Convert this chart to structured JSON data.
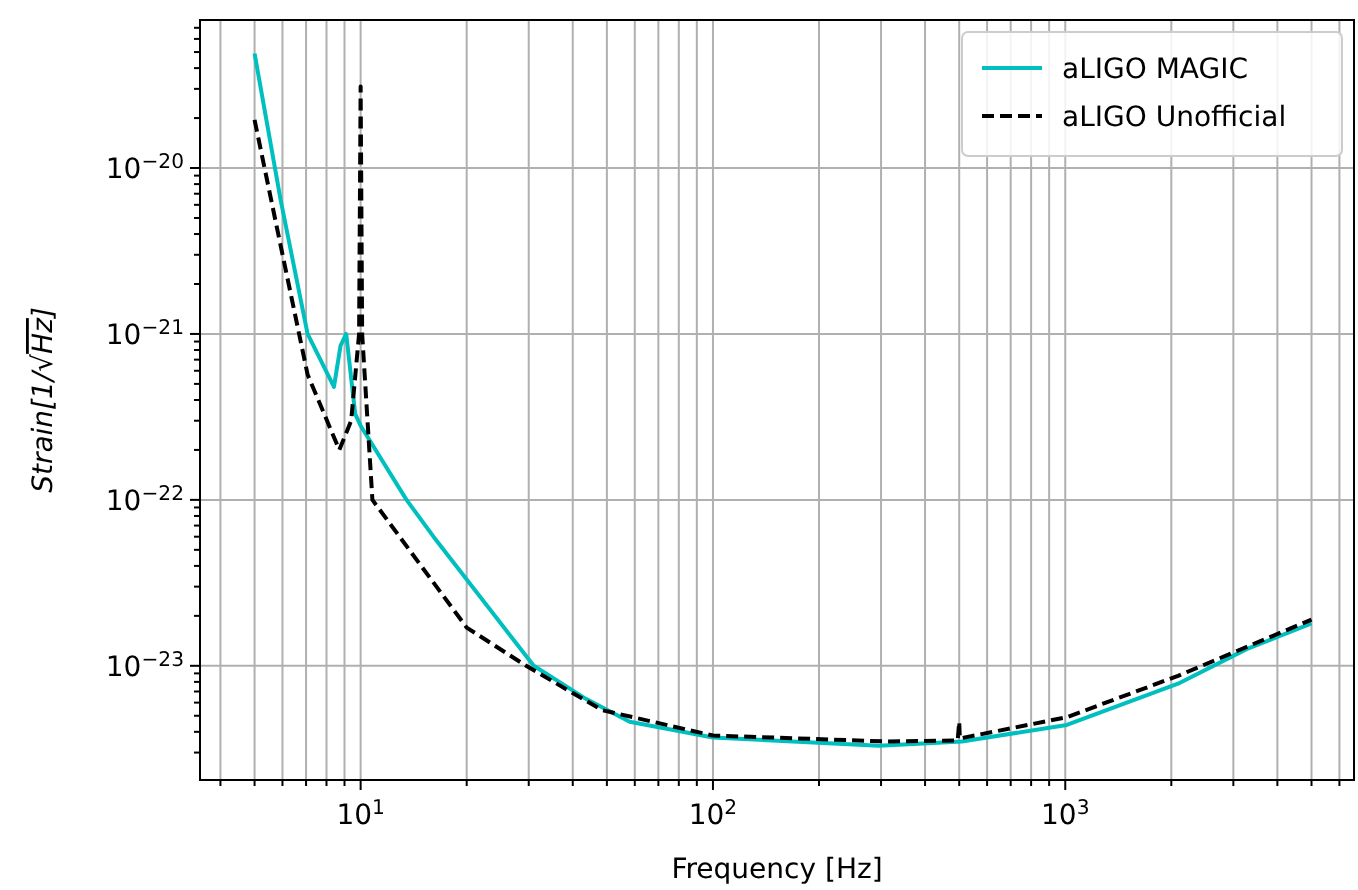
{
  "chart_data": {
    "type": "line",
    "xlabel": "Frequency [Hz]",
    "ylabel": "Strain[1/√Hz]",
    "log": "xy",
    "grid": true,
    "legend": "top right",
    "marker": "none",
    "xlim": [
      3.5,
      6600
    ],
    "ylim": [
      2.05e-24,
      7.8e-20
    ],
    "xticks": [
      {
        "value": 4,
        "label": null
      },
      {
        "value": 5,
        "label": null
      },
      {
        "value": 6,
        "label": null
      },
      {
        "value": 7,
        "label": null
      },
      {
        "value": 8,
        "label": null
      },
      {
        "value": 9,
        "label": null
      },
      {
        "value": 10,
        "label": "10$^{1}$"
      },
      {
        "value": 20,
        "label": null
      },
      {
        "value": 30,
        "label": null
      },
      {
        "value": 40,
        "label": null
      },
      {
        "value": 50,
        "label": null
      },
      {
        "value": 60,
        "label": null
      },
      {
        "value": 70,
        "label": null
      },
      {
        "value": 80,
        "label": null
      },
      {
        "value": 90,
        "label": null
      },
      {
        "value": 100,
        "label": "10$^{2}$"
      },
      {
        "value": 200,
        "label": null
      },
      {
        "value": 300,
        "label": null
      },
      {
        "value": 400,
        "label": null
      },
      {
        "value": 500,
        "label": null
      },
      {
        "value": 600,
        "label": null
      },
      {
        "value": 700,
        "label": null
      },
      {
        "value": 800,
        "label": null
      },
      {
        "value": 900,
        "label": null
      },
      {
        "value": 1000,
        "label": "10$^{3}$"
      },
      {
        "value": 2000,
        "label": null
      },
      {
        "value": 3000,
        "label": null
      },
      {
        "value": 4000,
        "label": null
      },
      {
        "value": 5000,
        "label": null
      },
      {
        "value": 6000,
        "label": null
      }
    ],
    "yticks": [
      {
        "value": 3e-24,
        "label": null
      },
      {
        "value": 4e-24,
        "label": null
      },
      {
        "value": 5e-24,
        "label": null
      },
      {
        "value": 6e-24,
        "label": null
      },
      {
        "value": 7e-24,
        "label": null
      },
      {
        "value": 8e-24,
        "label": null
      },
      {
        "value": 9e-24,
        "label": null
      },
      {
        "value": 1e-23,
        "label": "10$^{−23}$"
      },
      {
        "value": 2e-23,
        "label": null
      },
      {
        "value": 3e-23,
        "label": null
      },
      {
        "value": 4e-23,
        "label": null
      },
      {
        "value": 5e-23,
        "label": null
      },
      {
        "value": 6e-23,
        "label": null
      },
      {
        "value": 7e-23,
        "label": null
      },
      {
        "value": 8e-23,
        "label": null
      },
      {
        "value": 9e-23,
        "label": null
      },
      {
        "value": 1e-22,
        "label": "10$^{−22}$"
      },
      {
        "value": 2e-22,
        "label": null
      },
      {
        "value": 3e-22,
        "label": null
      },
      {
        "value": 4e-22,
        "label": null
      },
      {
        "value": 5e-22,
        "label": null
      },
      {
        "value": 6e-22,
        "label": null
      },
      {
        "value": 7e-22,
        "label": null
      },
      {
        "value": 8e-22,
        "label": null
      },
      {
        "value": 9e-22,
        "label": null
      },
      {
        "value": 1e-21,
        "label": "10$^{−21}$"
      },
      {
        "value": 2e-21,
        "label": null
      },
      {
        "value": 3e-21,
        "label": null
      },
      {
        "value": 4e-21,
        "label": null
      },
      {
        "value": 5e-21,
        "label": null
      },
      {
        "value": 6e-21,
        "label": null
      },
      {
        "value": 7e-21,
        "label": null
      },
      {
        "value": 8e-21,
        "label": null
      },
      {
        "value": 9e-21,
        "label": null
      },
      {
        "value": 1e-20,
        "label": "10$^{−20}$"
      },
      {
        "value": 2e-20,
        "label": null
      },
      {
        "value": 3e-20,
        "label": null
      },
      {
        "value": 4e-20,
        "label": null
      },
      {
        "value": 5e-20,
        "label": null
      },
      {
        "value": 6e-20,
        "label": null
      },
      {
        "value": 7e-20,
        "label": null
      }
    ],
    "series": [
      {
        "name": "aLIGO MAGIC",
        "color": "#00bfbf",
        "line_style": "solid",
        "x": [
          5,
          5.93,
          7.07,
          8.4,
          8.77,
          9.1,
          9.65,
          10,
          13.5,
          16.1,
          31,
          43.7,
          58,
          100,
          296,
          509,
          1010,
          2090,
          3270,
          5000
        ],
        "values": [
          4.9e-20,
          6.4e-21,
          1e-21,
          4.8e-22,
          8.5e-22,
          1e-21,
          3.3e-22,
          2.8e-22,
          1e-22,
          6e-23,
          1e-23,
          6.3e-24,
          4.6e-24,
          3.7e-24,
          3.3e-24,
          3.5e-24,
          4.4e-24,
          7.8e-24,
          1.26e-23,
          1.8e-23
        ]
      },
      {
        "name": "aLIGO Unofficial",
        "color": "#000000",
        "line_style": "dashed",
        "x": [
          5,
          5.93,
          7.07,
          8.7,
          9.4,
          9.9,
          10,
          10.1,
          10.8,
          20,
          29.5,
          48.5,
          100,
          310,
          495,
          500,
          502,
          1010,
          2090,
          5000
        ],
        "values": [
          1.95e-20,
          3.4e-21,
          5.7e-22,
          2e-22,
          3e-22,
          1e-21,
          3.1e-20,
          1e-21,
          1e-22,
          1.7e-23,
          1e-23,
          5.4e-24,
          3.8e-24,
          3.5e-24,
          3.55e-24,
          4.6e-24,
          3.65e-24,
          4.9e-24,
          8.7e-24,
          1.9e-23
        ]
      }
    ]
  }
}
